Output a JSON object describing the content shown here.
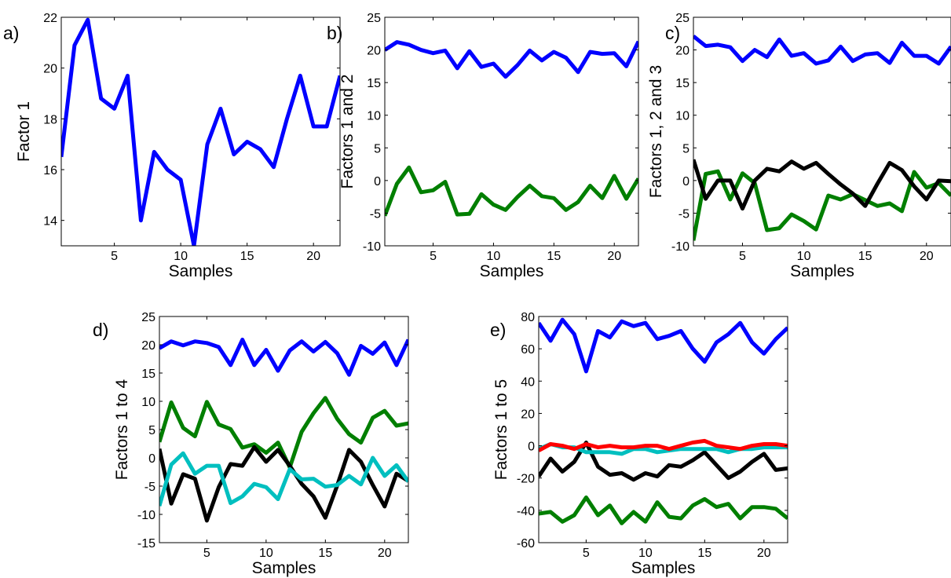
{
  "chart_data": [
    {
      "type": "line",
      "panel_label": "a)",
      "xlabel": "Samples",
      "ylabel": "Factor 1",
      "xlim": [
        1,
        22
      ],
      "ylim": [
        13,
        22
      ],
      "xticks": [
        5,
        10,
        15,
        20
      ],
      "yticks": [
        14,
        16,
        18,
        20,
        22
      ],
      "x": [
        1,
        2,
        3,
        4,
        5,
        6,
        7,
        8,
        9,
        10,
        11,
        12,
        13,
        14,
        15,
        16,
        17,
        18,
        19,
        20,
        21,
        22
      ],
      "series": [
        {
          "color": "#0000ff",
          "values": [
            16.5,
            20.9,
            21.9,
            18.8,
            18.4,
            19.7,
            14.0,
            16.7,
            16.0,
            15.6,
            13.0,
            17.0,
            18.4,
            16.6,
            17.1,
            16.8,
            16.1,
            18.0,
            19.7,
            17.7,
            17.7,
            19.7
          ]
        }
      ]
    },
    {
      "type": "line",
      "panel_label": "b)",
      "xlabel": "Samples",
      "ylabel": "Factors 1 and 2",
      "xlim": [
        1,
        22
      ],
      "ylim": [
        -10,
        25
      ],
      "xticks": [
        5,
        10,
        15,
        20
      ],
      "yticks": [
        -10,
        -5,
        0,
        5,
        10,
        15,
        20,
        25
      ],
      "x": [
        1,
        2,
        3,
        4,
        5,
        6,
        7,
        8,
        9,
        10,
        11,
        12,
        13,
        14,
        15,
        16,
        17,
        18,
        19,
        20,
        21,
        22
      ],
      "series": [
        {
          "color": "#0000ff",
          "values": [
            20.0,
            21.2,
            20.8,
            20.0,
            19.5,
            19.9,
            17.2,
            19.8,
            17.4,
            17.9,
            15.9,
            17.7,
            19.9,
            18.4,
            19.7,
            18.8,
            16.6,
            19.7,
            19.4,
            19.5,
            17.5,
            21.3
          ]
        },
        {
          "color": "#007f00",
          "values": [
            -5.4,
            -0.5,
            2.0,
            -1.8,
            -1.5,
            -0.2,
            -5.2,
            -5.1,
            -2.1,
            -3.7,
            -4.5,
            -2.5,
            -0.8,
            -2.4,
            -2.7,
            -4.5,
            -3.3,
            -0.8,
            -2.7,
            0.7,
            -2.8,
            0.3
          ]
        }
      ]
    },
    {
      "type": "line",
      "panel_label": "c)",
      "xlabel": "Samples",
      "ylabel": "Factors 1, 2 and 3",
      "xlim": [
        1,
        22
      ],
      "ylim": [
        -10,
        25
      ],
      "xticks": [
        5,
        10,
        15,
        20
      ],
      "yticks": [
        -10,
        -5,
        0,
        5,
        10,
        15,
        20,
        25
      ],
      "x": [
        1,
        2,
        3,
        4,
        5,
        6,
        7,
        8,
        9,
        10,
        11,
        12,
        13,
        14,
        15,
        16,
        17,
        18,
        19,
        20,
        21,
        22
      ],
      "series": [
        {
          "color": "#0000ff",
          "values": [
            22.1,
            20.6,
            20.8,
            20.4,
            18.3,
            20.0,
            18.9,
            21.6,
            19.1,
            19.5,
            17.9,
            18.4,
            20.5,
            18.3,
            19.3,
            19.5,
            18.0,
            21.1,
            19.1,
            19.1,
            17.9,
            20.5
          ]
        },
        {
          "color": "#007f00",
          "values": [
            -9.2,
            1.0,
            1.4,
            -2.9,
            1.1,
            -0.4,
            -7.6,
            -7.3,
            -5.2,
            -6.2,
            -7.5,
            -2.3,
            -2.9,
            -2.1,
            -3.0,
            -3.9,
            -3.5,
            -4.7,
            1.3,
            -1.1,
            -0.4,
            -2.3
          ]
        },
        {
          "color": "#000000",
          "values": [
            3.2,
            -2.8,
            0.0,
            0.0,
            -4.3,
            0.0,
            1.8,
            1.4,
            2.9,
            1.8,
            2.7,
            1.0,
            -0.6,
            -2.0,
            -3.9,
            -0.5,
            2.7,
            1.6,
            -0.9,
            -2.9,
            0.0,
            -0.1
          ]
        }
      ]
    },
    {
      "type": "line",
      "panel_label": "d)",
      "xlabel": "Samples",
      "ylabel": "Factors 1 to 4",
      "xlim": [
        1,
        22
      ],
      "ylim": [
        -15,
        25
      ],
      "xticks": [
        5,
        10,
        15,
        20
      ],
      "yticks": [
        -15,
        -10,
        -5,
        0,
        5,
        10,
        15,
        20,
        25
      ],
      "x": [
        1,
        2,
        3,
        4,
        5,
        6,
        7,
        8,
        9,
        10,
        11,
        12,
        13,
        14,
        15,
        16,
        17,
        18,
        19,
        20,
        21,
        22
      ],
      "series": [
        {
          "color": "#0000ff",
          "values": [
            19.4,
            20.6,
            19.9,
            20.6,
            20.3,
            19.6,
            16.4,
            20.9,
            16.4,
            19.1,
            15.4,
            19.0,
            20.6,
            18.8,
            20.5,
            18.5,
            14.7,
            19.8,
            18.4,
            20.4,
            16.4,
            20.9
          ]
        },
        {
          "color": "#007f00",
          "values": [
            2.8,
            9.8,
            5.3,
            3.8,
            9.9,
            5.9,
            5.1,
            1.8,
            2.4,
            0.9,
            2.7,
            -1.7,
            4.6,
            7.9,
            10.6,
            6.9,
            4.2,
            2.7,
            7.1,
            8.3,
            5.7,
            6.1
          ]
        },
        {
          "color": "#000000",
          "values": [
            1.6,
            -8.1,
            -2.9,
            -3.7,
            -11.1,
            -5.2,
            -1.1,
            -1.4,
            1.9,
            -0.7,
            1.4,
            -1.4,
            -4.6,
            -6.8,
            -10.6,
            -4.9,
            1.4,
            -0.7,
            -4.8,
            -8.6,
            -2.8,
            -4.1
          ]
        },
        {
          "color": "#00bfbf",
          "values": [
            -8.5,
            -1.2,
            0.8,
            -2.8,
            -1.4,
            -1.4,
            -8.0,
            -6.8,
            -4.6,
            -5.2,
            -7.3,
            -2.0,
            -3.8,
            -3.7,
            -5.1,
            -4.8,
            -3.2,
            -4.7,
            0.0,
            -3.2,
            -1.3,
            -4.2
          ]
        }
      ]
    },
    {
      "type": "line",
      "panel_label": "e)",
      "xlabel": "Samples",
      "ylabel": "Factors 1 to 5",
      "xlim": [
        1,
        22
      ],
      "ylim": [
        -60,
        80
      ],
      "xticks": [
        5,
        10,
        15,
        20
      ],
      "yticks": [
        -60,
        -40,
        -20,
        0,
        20,
        40,
        60,
        80
      ],
      "x": [
        1,
        2,
        3,
        4,
        5,
        6,
        7,
        8,
        9,
        10,
        11,
        12,
        13,
        14,
        15,
        16,
        17,
        18,
        19,
        20,
        21,
        22
      ],
      "series": [
        {
          "color": "#0000ff",
          "values": [
            76,
            65,
            78,
            69,
            46,
            71,
            67,
            77,
            74,
            76,
            66,
            68,
            71,
            60,
            52,
            64,
            69,
            76,
            64,
            57,
            66,
            73
          ]
        },
        {
          "color": "#007f00",
          "values": [
            -42,
            -41,
            -47,
            -43,
            -32,
            -43,
            -37,
            -48,
            -41,
            -47,
            -35,
            -44,
            -45,
            -37,
            -33,
            -38,
            -36,
            -45,
            -38,
            -38,
            -39,
            -45
          ]
        },
        {
          "color": "#000000",
          "values": [
            -19,
            -8,
            -16,
            -10,
            2,
            -13,
            -18,
            -17,
            -21,
            -17,
            -19,
            -12,
            -13,
            -9,
            -4,
            -12,
            -20,
            -16,
            -10,
            -5,
            -15,
            -14
          ]
        },
        {
          "color": "#00bfbf",
          "values": [
            -2,
            1,
            -1,
            -1,
            -4,
            -4,
            -4,
            -5,
            -2,
            -2,
            -4,
            -3,
            -2,
            -2,
            -2,
            -2,
            -4,
            -2,
            -2,
            -1,
            -1,
            -1
          ]
        },
        {
          "color": "#ff0000",
          "values": [
            -3,
            1,
            0,
            -2,
            1,
            -1,
            0,
            -1,
            -1,
            0,
            0,
            -2,
            0,
            2,
            3,
            0,
            -1,
            -2,
            0,
            1,
            1,
            0
          ]
        }
      ]
    }
  ]
}
